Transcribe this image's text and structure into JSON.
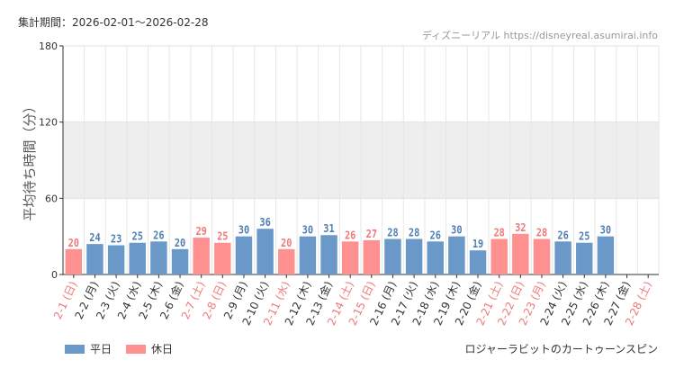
{
  "header": {
    "period": "集計期間：2026-02-01～2026-02-28",
    "credit": "ディズニーリアル https://disneyreal.asumirai.info"
  },
  "footer": {
    "attraction": "ロジャーラビットのカートゥーンスピン"
  },
  "colors": {
    "weekday": "#6a99c9",
    "holiday": "#ff9090",
    "weekday_text": "#4f7fb5",
    "holiday_text": "#f07878",
    "band": "#eeeeee"
  },
  "chart_data": {
    "type": "bar",
    "ylabel": "平均待ち時間（分）",
    "ylim": [
      0,
      180
    ],
    "yticks": [
      0,
      60,
      120,
      180
    ],
    "shaded_band": [
      60,
      120
    ],
    "legend": [
      {
        "name": "平日",
        "kind": "weekday"
      },
      {
        "name": "休日",
        "kind": "holiday"
      }
    ],
    "legend_placement": "bottom-left",
    "categories": [
      "2-1 (日)",
      "2-2 (月)",
      "2-3 (火)",
      "2-4 (水)",
      "2-5 (木)",
      "2-6 (金)",
      "2-7 (土)",
      "2-8 (日)",
      "2-9 (月)",
      "2-10 (火)",
      "2-11 (水)",
      "2-12 (木)",
      "2-13 (金)",
      "2-14 (土)",
      "2-15 (日)",
      "2-16 (月)",
      "2-17 (火)",
      "2-18 (水)",
      "2-19 (木)",
      "2-20 (金)",
      "2-21 (土)",
      "2-22 (日)",
      "2-23 (月)",
      "2-24 (火)",
      "2-25 (水)",
      "2-26 (木)",
      "2-27 (金)",
      "2-28 (土)"
    ],
    "kinds": [
      "holiday",
      "weekday",
      "weekday",
      "weekday",
      "weekday",
      "weekday",
      "holiday",
      "holiday",
      "weekday",
      "weekday",
      "holiday",
      "weekday",
      "weekday",
      "holiday",
      "holiday",
      "weekday",
      "weekday",
      "weekday",
      "weekday",
      "weekday",
      "holiday",
      "holiday",
      "holiday",
      "weekday",
      "weekday",
      "weekday",
      "weekday",
      "holiday"
    ],
    "values": [
      20,
      24,
      23,
      25,
      26,
      20,
      29,
      25,
      30,
      36,
      20,
      30,
      31,
      26,
      27,
      28,
      28,
      26,
      30,
      19,
      28,
      32,
      28,
      26,
      25,
      30,
      null,
      null
    ]
  }
}
